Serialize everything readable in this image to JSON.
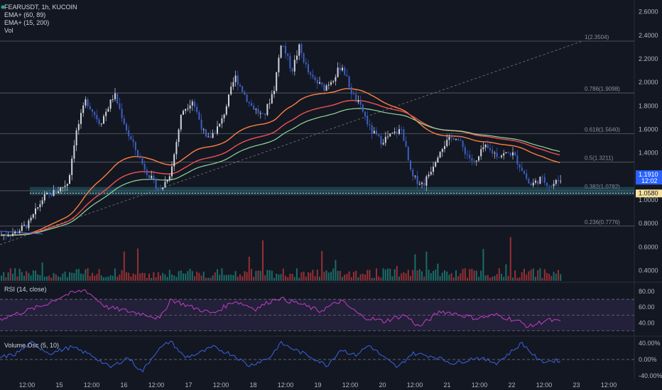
{
  "header": {
    "symbol_line": "FEARUSDT, 1h, KUCOIN",
    "ema1": "EMA+ (60, 89)",
    "ema2": "EMA+ (15, 200)",
    "vol": "Vol"
  },
  "colors": {
    "background": "#131722",
    "grid": "#2a2e39",
    "up": "#d1d4dc",
    "down": "#3d5fc4",
    "ema_fast": "#ff7f3f",
    "ema_slow": "#ef5350",
    "ema_green": "#8fd99c",
    "rsi": "#c23fc7",
    "volosc": "#3b63e0",
    "support_zone": "#2a6f7a",
    "vol_up": "#1f8a7f",
    "vol_down": "#c2393b"
  },
  "chart_data": {
    "type": "candlestick",
    "x_ticks": [
      "12:00",
      "15",
      "12:00",
      "16",
      "12:00",
      "17",
      "12:00",
      "18",
      "12:00",
      "19",
      "12:00",
      "20",
      "12:00",
      "21",
      "12:00",
      "22",
      "12:00",
      "23",
      "12:00"
    ],
    "y_ticks": [
      "2.6000",
      "2.4000",
      "2.2000",
      "2.0000",
      "1.8000",
      "1.6000",
      "1.4000",
      "1.0000",
      "0.8000",
      "0.6000",
      "0.4000"
    ],
    "last_price": "1.1910",
    "countdown": "12:02",
    "support_price": "1.0580",
    "ylim": [
      0.3,
      2.7
    ],
    "fib_levels": [
      {
        "label": "1(2.3504)",
        "value": 2.3504
      },
      {
        "label": "0.786(1.9098)",
        "value": 1.9098
      },
      {
        "label": "0.618(1.5640)",
        "value": 1.564
      },
      {
        "label": "0.5(1.3211)",
        "value": 1.3211
      },
      {
        "label": "0.382(1.0782)",
        "value": 1.0782
      },
      {
        "label": "0.236(0.7776)",
        "value": 0.7776
      }
    ],
    "keypoints": [
      [
        0,
        0.7
      ],
      [
        20,
        0.72
      ],
      [
        40,
        0.8
      ],
      [
        60,
        1.02
      ],
      [
        80,
        1.08
      ],
      [
        95,
        1.15
      ],
      [
        105,
        1.55
      ],
      [
        120,
        1.85
      ],
      [
        140,
        1.65
      ],
      [
        160,
        1.9
      ],
      [
        180,
        1.55
      ],
      [
        200,
        1.3
      ],
      [
        215,
        1.15
      ],
      [
        225,
        1.08
      ],
      [
        240,
        1.25
      ],
      [
        255,
        1.75
      ],
      [
        270,
        1.85
      ],
      [
        290,
        1.5
      ],
      [
        310,
        1.65
      ],
      [
        330,
        2.05
      ],
      [
        350,
        1.82
      ],
      [
        370,
        1.7
      ],
      [
        385,
        1.95
      ],
      [
        395,
        2.35
      ],
      [
        410,
        2.1
      ],
      [
        420,
        2.3
      ],
      [
        435,
        2.05
      ],
      [
        455,
        1.95
      ],
      [
        470,
        2.05
      ],
      [
        480,
        2.15
      ],
      [
        495,
        1.9
      ],
      [
        510,
        1.75
      ],
      [
        520,
        1.6
      ],
      [
        535,
        1.5
      ],
      [
        550,
        1.55
      ],
      [
        565,
        1.6
      ],
      [
        578,
        1.2
      ],
      [
        595,
        1.13
      ],
      [
        605,
        1.25
      ],
      [
        620,
        1.45
      ],
      [
        640,
        1.55
      ],
      [
        655,
        1.4
      ],
      [
        668,
        1.3
      ],
      [
        680,
        1.45
      ],
      [
        700,
        1.38
      ],
      [
        720,
        1.4
      ],
      [
        735,
        1.25
      ],
      [
        745,
        1.12
      ],
      [
        760,
        1.18
      ],
      [
        775,
        1.12
      ],
      [
        790,
        1.19
      ]
    ],
    "rsi": {
      "label": "RSI (14, close)",
      "y_ticks": [
        "80.00",
        "60.00",
        "40.00"
      ],
      "keypoints": [
        [
          0,
          45
        ],
        [
          60,
          62
        ],
        [
          90,
          75
        ],
        [
          120,
          82
        ],
        [
          150,
          60
        ],
        [
          180,
          55
        ],
        [
          210,
          50
        ],
        [
          225,
          45
        ],
        [
          240,
          70
        ],
        [
          270,
          60
        ],
        [
          300,
          52
        ],
        [
          330,
          68
        ],
        [
          360,
          58
        ],
        [
          390,
          72
        ],
        [
          420,
          65
        ],
        [
          450,
          55
        ],
        [
          480,
          68
        ],
        [
          510,
          48
        ],
        [
          540,
          42
        ],
        [
          570,
          50
        ],
        [
          590,
          35
        ],
        [
          620,
          55
        ],
        [
          640,
          52
        ],
        [
          670,
          46
        ],
        [
          700,
          50
        ],
        [
          730,
          42
        ],
        [
          745,
          35
        ],
        [
          770,
          44
        ],
        [
          790,
          41
        ]
      ]
    },
    "volume_osc": {
      "label": "Volume Osc (5, 10)",
      "y_ticks": [
        "40.00%",
        "0.00%",
        "-40.00%"
      ],
      "keypoints": [
        [
          0,
          5
        ],
        [
          20,
          12
        ],
        [
          45,
          40
        ],
        [
          70,
          15
        ],
        [
          100,
          30
        ],
        [
          130,
          10
        ],
        [
          155,
          -20
        ],
        [
          180,
          5
        ],
        [
          200,
          -30
        ],
        [
          220,
          20
        ],
        [
          240,
          45
        ],
        [
          260,
          5
        ],
        [
          280,
          15
        ],
        [
          300,
          30
        ],
        [
          330,
          10
        ],
        [
          350,
          -15
        ],
        [
          380,
          5
        ],
        [
          395,
          40
        ],
        [
          420,
          20
        ],
        [
          440,
          5
        ],
        [
          460,
          -15
        ],
        [
          480,
          25
        ],
        [
          500,
          10
        ],
        [
          520,
          35
        ],
        [
          540,
          5
        ],
        [
          560,
          -20
        ],
        [
          580,
          15
        ],
        [
          610,
          8
        ],
        [
          640,
          -10
        ],
        [
          670,
          5
        ],
        [
          700,
          -8
        ],
        [
          735,
          40
        ],
        [
          760,
          -5
        ],
        [
          790,
          -2
        ]
      ]
    }
  }
}
